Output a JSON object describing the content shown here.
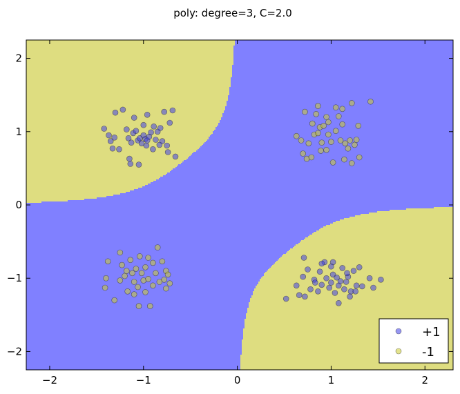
{
  "chart_data": {
    "type": "scatter",
    "title": "poly: degree=3, C=2.0",
    "xlim": [
      -2.25,
      2.3
    ],
    "ylim": [
      -2.25,
      2.25
    ],
    "x_ticks": [
      -2,
      -1,
      0,
      1,
      2
    ],
    "y_ticks": [
      2,
      1,
      0,
      -1,
      -2
    ],
    "x_tick_labels": [
      "−2",
      "−1",
      "0",
      "1",
      "2"
    ],
    "y_tick_labels": [
      "2",
      "1",
      "0",
      "−1",
      "−2"
    ],
    "legend_position": "bottom-right",
    "regions": {
      "positive_color": "#8080ff",
      "negative_color": "#dedd80",
      "decision_function": "x*y*(0.33 + 0.8*(x*x + y*y))"
    },
    "series": [
      {
        "name": "+1",
        "color": "#4040e8",
        "points": [
          [
            -1.42,
            1.04
          ],
          [
            -1.37,
            0.95
          ],
          [
            -1.35,
            0.87
          ],
          [
            -1.33,
            0.77
          ],
          [
            -1.31,
            0.92
          ],
          [
            -1.26,
            0.76
          ],
          [
            -1.22,
            1.3
          ],
          [
            -1.18,
            1.03
          ],
          [
            -1.16,
            0.91
          ],
          [
            -1.15,
            0.63
          ],
          [
            -1.13,
            0.85
          ],
          [
            -1.11,
            0.98
          ],
          [
            -1.08,
            1.01
          ],
          [
            -1.06,
            0.88
          ],
          [
            -1.04,
            0.91
          ],
          [
            -1.02,
            0.84
          ],
          [
            -1.0,
            0.95
          ],
          [
            -0.98,
            0.9
          ],
          [
            -0.97,
            0.81
          ],
          [
            -0.96,
            0.88
          ],
          [
            -0.94,
            0.93
          ],
          [
            -0.92,
            0.99
          ],
          [
            -0.9,
            0.76
          ],
          [
            -0.87,
            0.89
          ],
          [
            -0.85,
            1.0
          ],
          [
            -0.82,
            1.05
          ],
          [
            -0.8,
            0.87
          ],
          [
            -0.78,
            1.27
          ],
          [
            -0.75,
            0.81
          ],
          [
            -0.72,
            1.12
          ],
          [
            -0.69,
            1.29
          ],
          [
            -0.66,
            0.66
          ],
          [
            -1.1,
            1.19
          ],
          [
            -1.14,
            0.56
          ],
          [
            -1.05,
            0.55
          ],
          [
            -0.96,
            1.23
          ],
          [
            -1.0,
            1.09
          ],
          [
            -0.74,
            0.72
          ],
          [
            -1.3,
            1.26
          ],
          [
            -0.89,
            1.07
          ],
          [
            -0.83,
            0.82
          ],
          [
            0.52,
            -1.28
          ],
          [
            0.63,
            -1.1
          ],
          [
            0.66,
            -1.23
          ],
          [
            0.7,
            -0.98
          ],
          [
            0.72,
            -1.25
          ],
          [
            0.75,
            -0.88
          ],
          [
            0.78,
            -1.15
          ],
          [
            0.82,
            -1.02
          ],
          [
            0.86,
            -1.18
          ],
          [
            0.88,
            -0.91
          ],
          [
            0.9,
            -1.09
          ],
          [
            0.93,
            -0.78
          ],
          [
            0.95,
            -1.0
          ],
          [
            0.98,
            -1.13
          ],
          [
            1.0,
            -1.06
          ],
          [
            1.02,
            -0.95
          ],
          [
            1.04,
            -1.2
          ],
          [
            1.06,
            -0.99
          ],
          [
            1.08,
            -1.1
          ],
          [
            1.1,
            -1.04
          ],
          [
            1.12,
            -0.86
          ],
          [
            1.14,
            -1.15
          ],
          [
            1.16,
            -1.05
          ],
          [
            1.18,
            -0.98
          ],
          [
            1.21,
            -1.18
          ],
          [
            1.24,
            -0.9
          ],
          [
            1.27,
            -1.1
          ],
          [
            1.3,
            -0.85
          ],
          [
            1.33,
            -1.11
          ],
          [
            1.41,
            -1.0
          ],
          [
            1.45,
            -1.13
          ],
          [
            1.53,
            -1.02
          ],
          [
            0.71,
            -0.72
          ],
          [
            1.08,
            -1.34
          ],
          [
            0.9,
            -0.8
          ],
          [
            1.02,
            -0.78
          ],
          [
            1.0,
            -0.84
          ],
          [
            1.17,
            -0.93
          ],
          [
            1.26,
            -1.18
          ],
          [
            1.2,
            -1.25
          ],
          [
            0.83,
            -1.06
          ]
        ]
      },
      {
        "name": "-1",
        "color": "#cccc30",
        "points": [
          [
            0.63,
            0.94
          ],
          [
            0.68,
            0.88
          ],
          [
            0.7,
            0.7
          ],
          [
            0.72,
            1.27
          ],
          [
            0.74,
            0.63
          ],
          [
            0.76,
            0.84
          ],
          [
            0.8,
            1.11
          ],
          [
            0.82,
            0.96
          ],
          [
            0.84,
            1.24
          ],
          [
            0.86,
            0.98
          ],
          [
            0.88,
            1.06
          ],
          [
            0.9,
            0.85
          ],
          [
            0.92,
            1.08
          ],
          [
            0.95,
            0.75
          ],
          [
            0.97,
            0.96
          ],
          [
            1.0,
            0.86
          ],
          [
            1.02,
            0.58
          ],
          [
            1.05,
            1.01
          ],
          [
            1.08,
            1.21
          ],
          [
            1.1,
            0.88
          ],
          [
            1.12,
            1.1
          ],
          [
            1.15,
            0.84
          ],
          [
            1.18,
            0.77
          ],
          [
            1.2,
            0.88
          ],
          [
            1.22,
            0.57
          ],
          [
            1.25,
            0.82
          ],
          [
            1.27,
            0.89
          ],
          [
            1.3,
            0.65
          ],
          [
            1.42,
            1.41
          ],
          [
            1.12,
            1.31
          ],
          [
            1.05,
            1.33
          ],
          [
            0.95,
            1.2
          ],
          [
            0.89,
            0.74
          ],
          [
            0.86,
            1.35
          ],
          [
            0.79,
            0.65
          ],
          [
            1.14,
            0.62
          ],
          [
            1.29,
            1.08
          ],
          [
            1.22,
            1.39
          ],
          [
            0.97,
            1.13
          ],
          [
            -1.38,
            -0.77
          ],
          [
            -1.4,
            -1.0
          ],
          [
            -1.41,
            -1.13
          ],
          [
            -1.31,
            -1.3
          ],
          [
            -1.25,
            -0.65
          ],
          [
            -1.23,
            -0.82
          ],
          [
            -1.2,
            -0.97
          ],
          [
            -1.17,
            -1.18
          ],
          [
            -1.14,
            -0.75
          ],
          [
            -1.12,
            -0.93
          ],
          [
            -1.1,
            -1.05
          ],
          [
            -1.08,
            -0.87
          ],
          [
            -1.06,
            -1.12
          ],
          [
            -1.04,
            -0.7
          ],
          [
            -1.02,
            -0.93
          ],
          [
            -1.0,
            -1.03
          ],
          [
            -0.98,
            -0.85
          ],
          [
            -0.95,
            -1.01
          ],
          [
            -0.93,
            -1.38
          ],
          [
            -0.9,
            -0.79
          ],
          [
            -0.87,
            -0.93
          ],
          [
            -0.85,
            -0.58
          ],
          [
            -0.83,
            -1.05
          ],
          [
            -0.8,
            -0.77
          ],
          [
            -0.78,
            -1.02
          ],
          [
            -0.76,
            -0.9
          ],
          [
            -0.74,
            -0.95
          ],
          [
            -0.72,
            -1.07
          ],
          [
            -1.1,
            -1.22
          ],
          [
            -1.05,
            -1.38
          ],
          [
            -0.95,
            -0.72
          ],
          [
            -0.9,
            -1.1
          ],
          [
            -1.18,
            -0.9
          ],
          [
            -1.25,
            -1.03
          ],
          [
            -0.98,
            -1.19
          ],
          [
            -0.76,
            -1.14
          ]
        ]
      }
    ]
  }
}
